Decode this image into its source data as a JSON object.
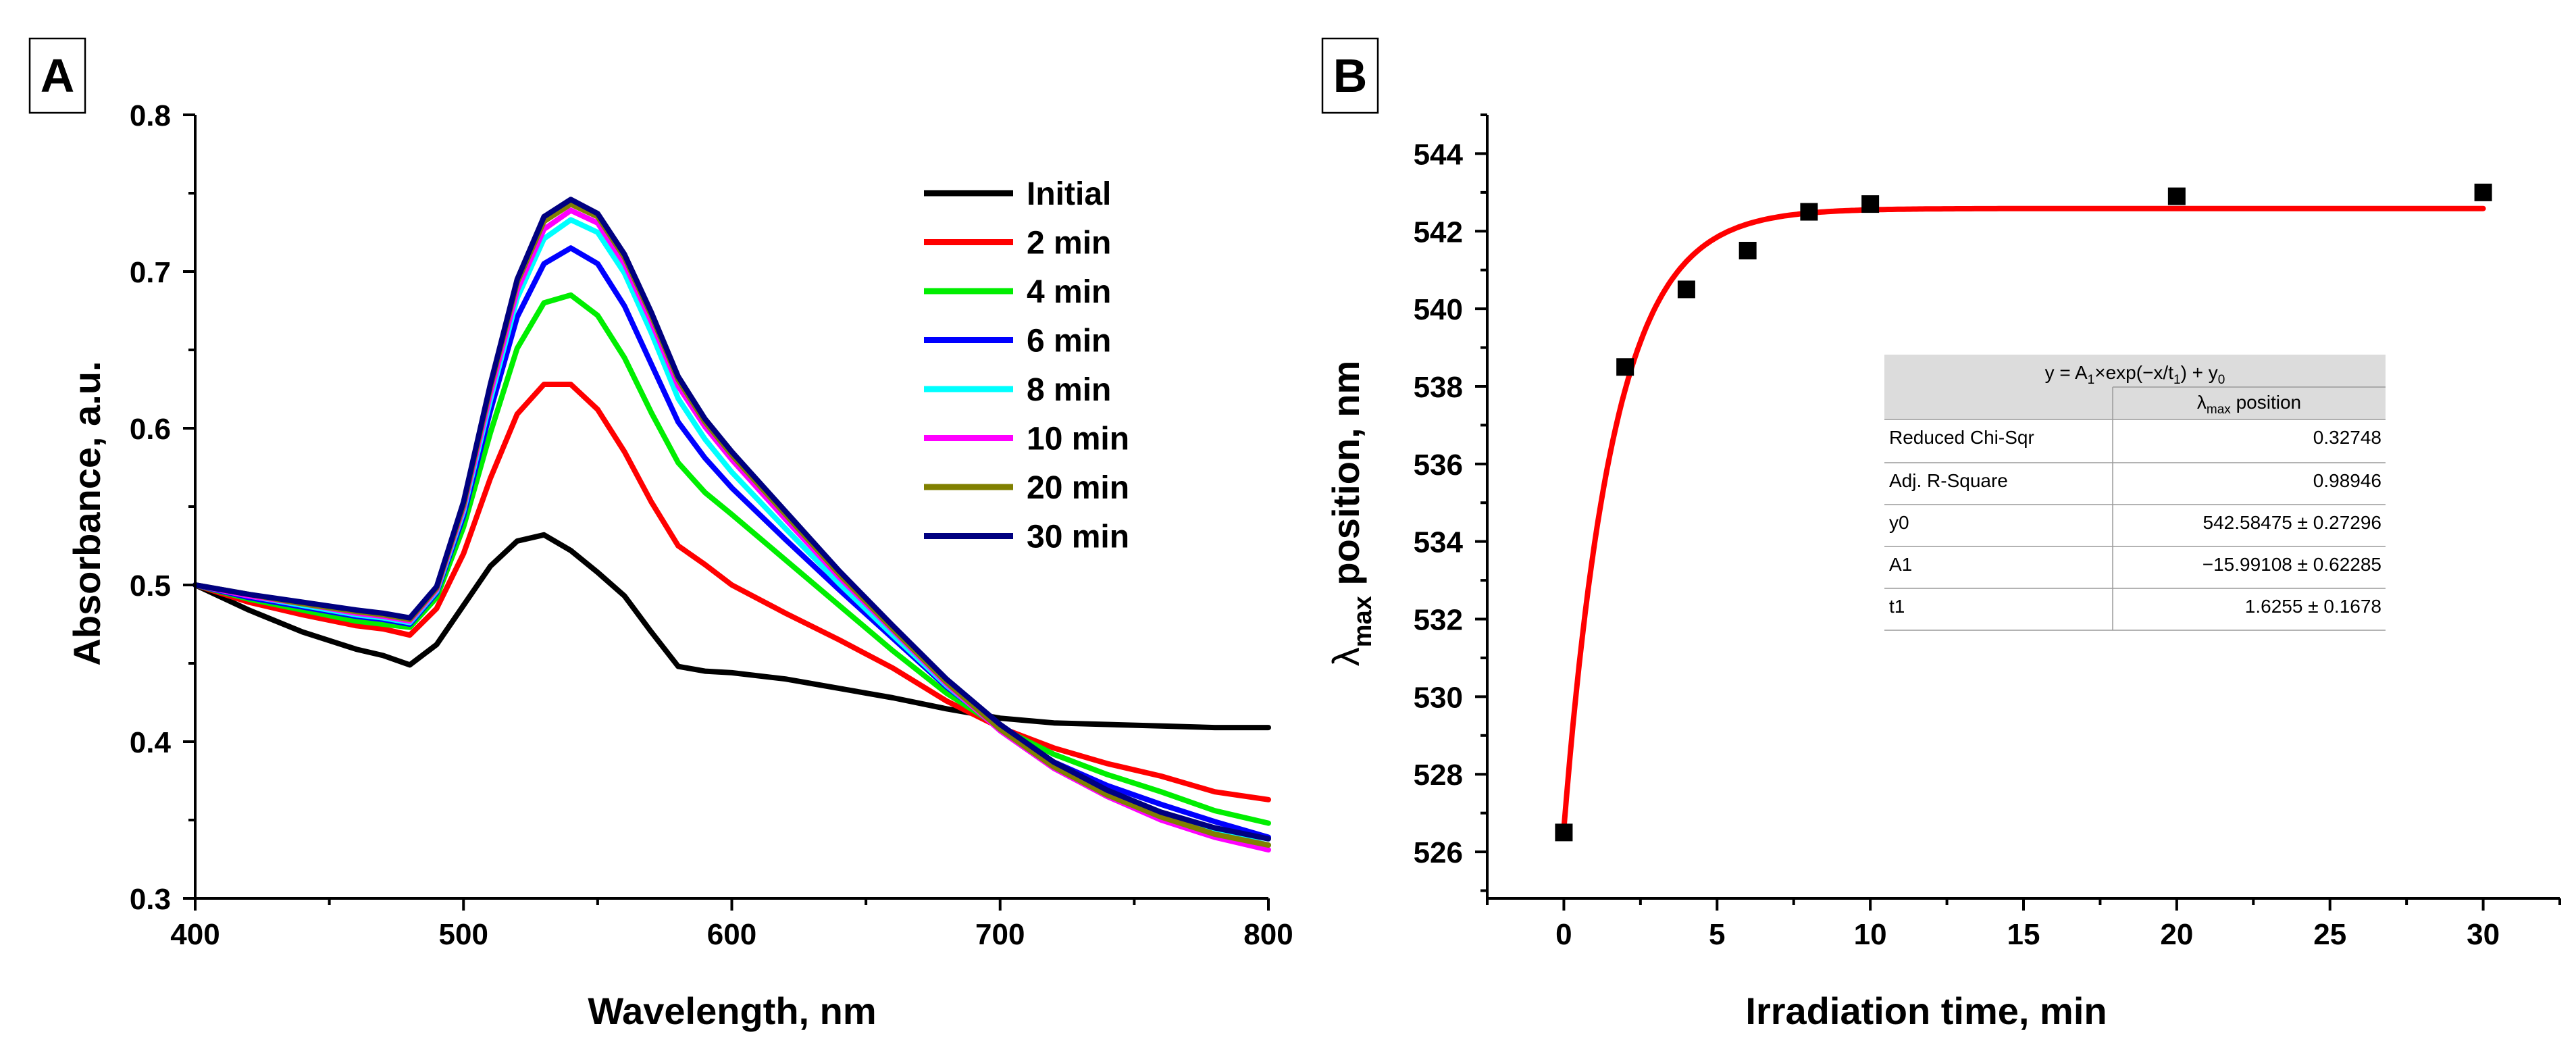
{
  "chart_data": [
    {
      "panel": "A",
      "type": "line",
      "title": "",
      "xlabel": "Wavelength, nm",
      "ylabel": "Absorbance, a.u.",
      "xlim": [
        400,
        800
      ],
      "ylim": [
        0.3,
        0.8
      ],
      "xticks": [
        "400",
        "500",
        "600",
        "700",
        "800"
      ],
      "yticks": [
        "0.3",
        "0.4",
        "0.5",
        "0.6",
        "0.7",
        "0.8"
      ],
      "legend_position": "top-right",
      "x": [
        400,
        420,
        440,
        460,
        470,
        480,
        490,
        500,
        510,
        520,
        530,
        540,
        550,
        560,
        570,
        580,
        590,
        600,
        620,
        640,
        660,
        680,
        700,
        720,
        740,
        760,
        780,
        800
      ],
      "series": [
        {
          "name": "Initial",
          "color": "#000000",
          "values": [
            0.5,
            0.484,
            0.47,
            0.459,
            0.455,
            0.449,
            0.462,
            0.487,
            0.512,
            0.528,
            0.532,
            0.522,
            0.508,
            0.493,
            0.47,
            0.448,
            0.445,
            0.444,
            0.44,
            0.434,
            0.428,
            0.421,
            0.415,
            0.412,
            0.411,
            0.41,
            0.409,
            0.409
          ]
        },
        {
          "name": "2 min",
          "color": "#ff0000",
          "values": [
            0.5,
            0.489,
            0.481,
            0.474,
            0.472,
            0.468,
            0.485,
            0.52,
            0.568,
            0.609,
            0.628,
            0.628,
            0.612,
            0.585,
            0.553,
            0.525,
            0.513,
            0.5,
            0.482,
            0.465,
            0.447,
            0.426,
            0.409,
            0.396,
            0.386,
            0.378,
            0.368,
            0.363
          ]
        },
        {
          "name": "4 min",
          "color": "#00ee00",
          "values": [
            0.5,
            0.491,
            0.484,
            0.477,
            0.475,
            0.473,
            0.492,
            0.537,
            0.597,
            0.651,
            0.68,
            0.685,
            0.672,
            0.645,
            0.61,
            0.578,
            0.559,
            0.545,
            0.516,
            0.487,
            0.458,
            0.431,
            0.409,
            0.392,
            0.379,
            0.368,
            0.356,
            0.348
          ]
        },
        {
          "name": "6 min",
          "color": "#0000ff",
          "values": [
            0.5,
            0.492,
            0.486,
            0.48,
            0.478,
            0.475,
            0.495,
            0.544,
            0.611,
            0.671,
            0.705,
            0.715,
            0.705,
            0.678,
            0.641,
            0.604,
            0.581,
            0.562,
            0.529,
            0.497,
            0.466,
            0.435,
            0.409,
            0.387,
            0.372,
            0.36,
            0.349,
            0.339
          ]
        },
        {
          "name": "8 min",
          "color": "#00ffff",
          "values": [
            0.5,
            0.493,
            0.487,
            0.481,
            0.479,
            0.476,
            0.496,
            0.547,
            0.618,
            0.683,
            0.721,
            0.733,
            0.725,
            0.699,
            0.661,
            0.619,
            0.593,
            0.572,
            0.536,
            0.501,
            0.468,
            0.436,
            0.408,
            0.385,
            0.368,
            0.355,
            0.343,
            0.334
          ]
        },
        {
          "name": "10 min",
          "color": "#ff00ff",
          "values": [
            0.5,
            0.493,
            0.488,
            0.482,
            0.48,
            0.477,
            0.497,
            0.549,
            0.622,
            0.688,
            0.727,
            0.739,
            0.731,
            0.705,
            0.668,
            0.627,
            0.601,
            0.58,
            0.542,
            0.505,
            0.471,
            0.437,
            0.407,
            0.383,
            0.365,
            0.35,
            0.339,
            0.331
          ]
        },
        {
          "name": "20 min",
          "color": "#808000",
          "values": [
            0.5,
            0.494,
            0.488,
            0.483,
            0.481,
            0.478,
            0.498,
            0.551,
            0.626,
            0.693,
            0.732,
            0.743,
            0.735,
            0.709,
            0.672,
            0.631,
            0.604,
            0.583,
            0.545,
            0.507,
            0.472,
            0.438,
            0.408,
            0.384,
            0.366,
            0.352,
            0.341,
            0.334
          ]
        },
        {
          "name": "30 min",
          "color": "#000080",
          "values": [
            0.5,
            0.494,
            0.489,
            0.484,
            0.482,
            0.479,
            0.499,
            0.553,
            0.628,
            0.695,
            0.735,
            0.746,
            0.737,
            0.711,
            0.674,
            0.633,
            0.606,
            0.585,
            0.547,
            0.509,
            0.474,
            0.44,
            0.411,
            0.387,
            0.369,
            0.355,
            0.345,
            0.338
          ]
        }
      ]
    },
    {
      "panel": "B",
      "type": "scatter",
      "title": "",
      "xlabel": "Irradiation time, min",
      "ylabel_main": "λ",
      "ylabel_sub": "max",
      "ylabel_rest": " position, nm",
      "xlim": [
        -2.5,
        32.5
      ],
      "ylim": [
        524.8,
        545
      ],
      "xticks": [
        "0",
        "5",
        "10",
        "15",
        "20",
        "25",
        "30"
      ],
      "yticks": [
        "526",
        "528",
        "530",
        "532",
        "534",
        "536",
        "538",
        "540",
        "542",
        "544"
      ],
      "series": [
        {
          "name": "λmax position",
          "marker": "square",
          "color": "#000000",
          "x": [
            0,
            2,
            4,
            6,
            8,
            10,
            20,
            30
          ],
          "y": [
            526.5,
            538.5,
            540.5,
            541.5,
            542.5,
            542.7,
            542.9,
            543.0
          ]
        }
      ],
      "fit": {
        "color": "#ff0000",
        "y0": 542.58475,
        "A1": -15.99108,
        "t1": 1.6255,
        "x_range": [
          0,
          30
        ]
      },
      "fit_table": {
        "equation_parts": [
          "y = A",
          "1",
          "×exp(−x/t",
          "1",
          ") + y",
          "0"
        ],
        "col_header_main": "λ",
        "col_header_sub": "max",
        "col_header_rest": " position",
        "rows": [
          {
            "label": "Reduced Chi-Sqr",
            "value": "0.32748"
          },
          {
            "label": "Adj. R-Square",
            "value": "0.98946"
          },
          {
            "label": "y0",
            "value": "542.58475 ± 0.27296"
          },
          {
            "label": "A1",
            "value": "−15.99108 ± 0.62285"
          },
          {
            "label": "t1",
            "value": "1.6255 ± 0.1678"
          }
        ]
      }
    }
  ]
}
